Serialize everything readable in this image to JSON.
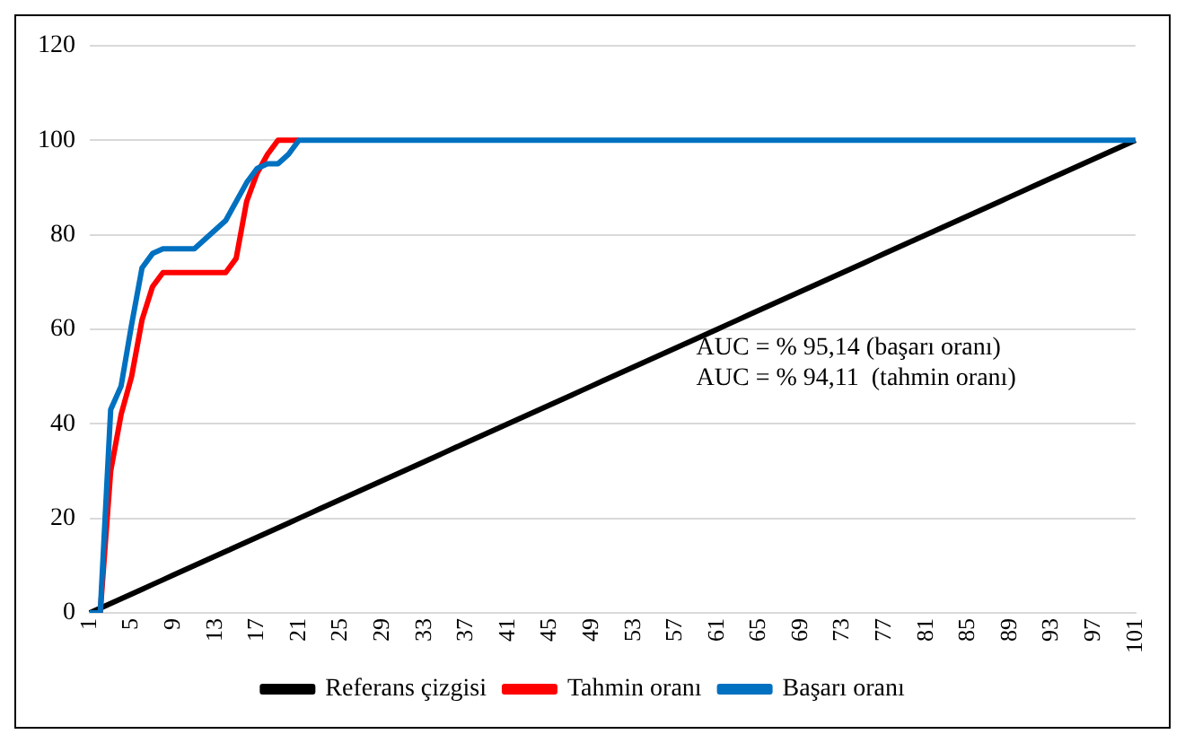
{
  "chart_data": {
    "type": "line",
    "categories": [
      "1",
      null,
      null,
      null,
      "5",
      null,
      null,
      null,
      "9",
      null,
      null,
      null,
      "13",
      null,
      null,
      null,
      "17",
      null,
      null,
      null,
      "21",
      null,
      null,
      null,
      "25",
      null,
      null,
      null,
      "29",
      null,
      null,
      null,
      "33",
      null,
      null,
      null,
      "37",
      null,
      null,
      null,
      "41",
      null,
      null,
      null,
      "45",
      null,
      null,
      null,
      "49",
      null,
      null,
      null,
      "53",
      null,
      null,
      null,
      "57",
      null,
      null,
      null,
      "61",
      null,
      null,
      null,
      "65",
      null,
      null,
      null,
      "69",
      null,
      null,
      null,
      "73",
      null,
      null,
      null,
      "77",
      null,
      null,
      null,
      "81",
      null,
      null,
      null,
      "85",
      null,
      null,
      null,
      "89",
      null,
      null,
      null,
      "93",
      null,
      null,
      null,
      "97",
      null,
      null,
      null,
      "101"
    ],
    "series": [
      {
        "name": "Referans çizgisi",
        "color": "#000000",
        "values": [
          0,
          1,
          2,
          3,
          4,
          5,
          6,
          7,
          8,
          9,
          10,
          11,
          12,
          13,
          14,
          15,
          16,
          17,
          18,
          19,
          20,
          21,
          22,
          23,
          24,
          25,
          26,
          27,
          28,
          29,
          30,
          31,
          32,
          33,
          34,
          35,
          36,
          37,
          38,
          39,
          40,
          41,
          42,
          43,
          44,
          45,
          46,
          47,
          48,
          49,
          50,
          51,
          52,
          53,
          54,
          55,
          56,
          57,
          58,
          59,
          60,
          61,
          62,
          63,
          64,
          65,
          66,
          67,
          68,
          69,
          70,
          71,
          72,
          73,
          74,
          75,
          76,
          77,
          78,
          79,
          80,
          81,
          82,
          83,
          84,
          85,
          86,
          87,
          88,
          89,
          90,
          91,
          92,
          93,
          94,
          95,
          96,
          97,
          98,
          99,
          100
        ]
      },
      {
        "name": "Tahmin oranı",
        "color": "#ff0000",
        "values": [
          null,
          0,
          30,
          42,
          50,
          62,
          69,
          72,
          72,
          72,
          72,
          72,
          72,
          72,
          75,
          87,
          93,
          97,
          100,
          100,
          100,
          null,
          null,
          null,
          null,
          null,
          null,
          null,
          null,
          null,
          null,
          null,
          null,
          null,
          null,
          null,
          null,
          null,
          null,
          null,
          null,
          null,
          null,
          null,
          null,
          null,
          null,
          null,
          null,
          null,
          null,
          null,
          null,
          null,
          null,
          null,
          null,
          null,
          null,
          null,
          null,
          null,
          null,
          null,
          null,
          null,
          null,
          null,
          null,
          null,
          null,
          null,
          null,
          null,
          null,
          null,
          null,
          null,
          null,
          null,
          null,
          null,
          null,
          null,
          null,
          null,
          null,
          null,
          null,
          null,
          null,
          null,
          null,
          null,
          null,
          null,
          null,
          null,
          null,
          null,
          null
        ]
      },
      {
        "name": "Başarı oranı",
        "color": "#0070c0",
        "values": [
          0,
          0,
          43,
          48,
          61,
          73,
          76,
          77,
          77,
          77,
          77,
          79,
          81,
          83,
          87,
          91,
          94,
          95,
          95,
          97,
          100,
          100,
          100,
          100,
          100,
          100,
          100,
          100,
          100,
          100,
          100,
          100,
          100,
          100,
          100,
          100,
          100,
          100,
          100,
          100,
          100,
          100,
          100,
          100,
          100,
          100,
          100,
          100,
          100,
          100,
          100,
          100,
          100,
          100,
          100,
          100,
          100,
          100,
          100,
          100,
          100,
          100,
          100,
          100,
          100,
          100,
          100,
          100,
          100,
          100,
          100,
          100,
          100,
          100,
          100,
          100,
          100,
          100,
          100,
          100,
          100,
          100,
          100,
          100,
          100,
          100,
          100,
          100,
          100,
          100,
          100,
          100,
          100,
          100,
          100,
          100,
          100,
          100,
          100,
          100,
          100
        ]
      }
    ],
    "ylim": [
      0,
      120
    ],
    "yticks": [
      0,
      20,
      40,
      60,
      80,
      100,
      120
    ],
    "grid": "y",
    "legend": "bottom",
    "marker": "none",
    "line_style": "solid",
    "annotations": [
      "AUC = % 95,14 (başarı oranı)",
      "AUC = % 94,11  (tahmin oranı)"
    ]
  }
}
